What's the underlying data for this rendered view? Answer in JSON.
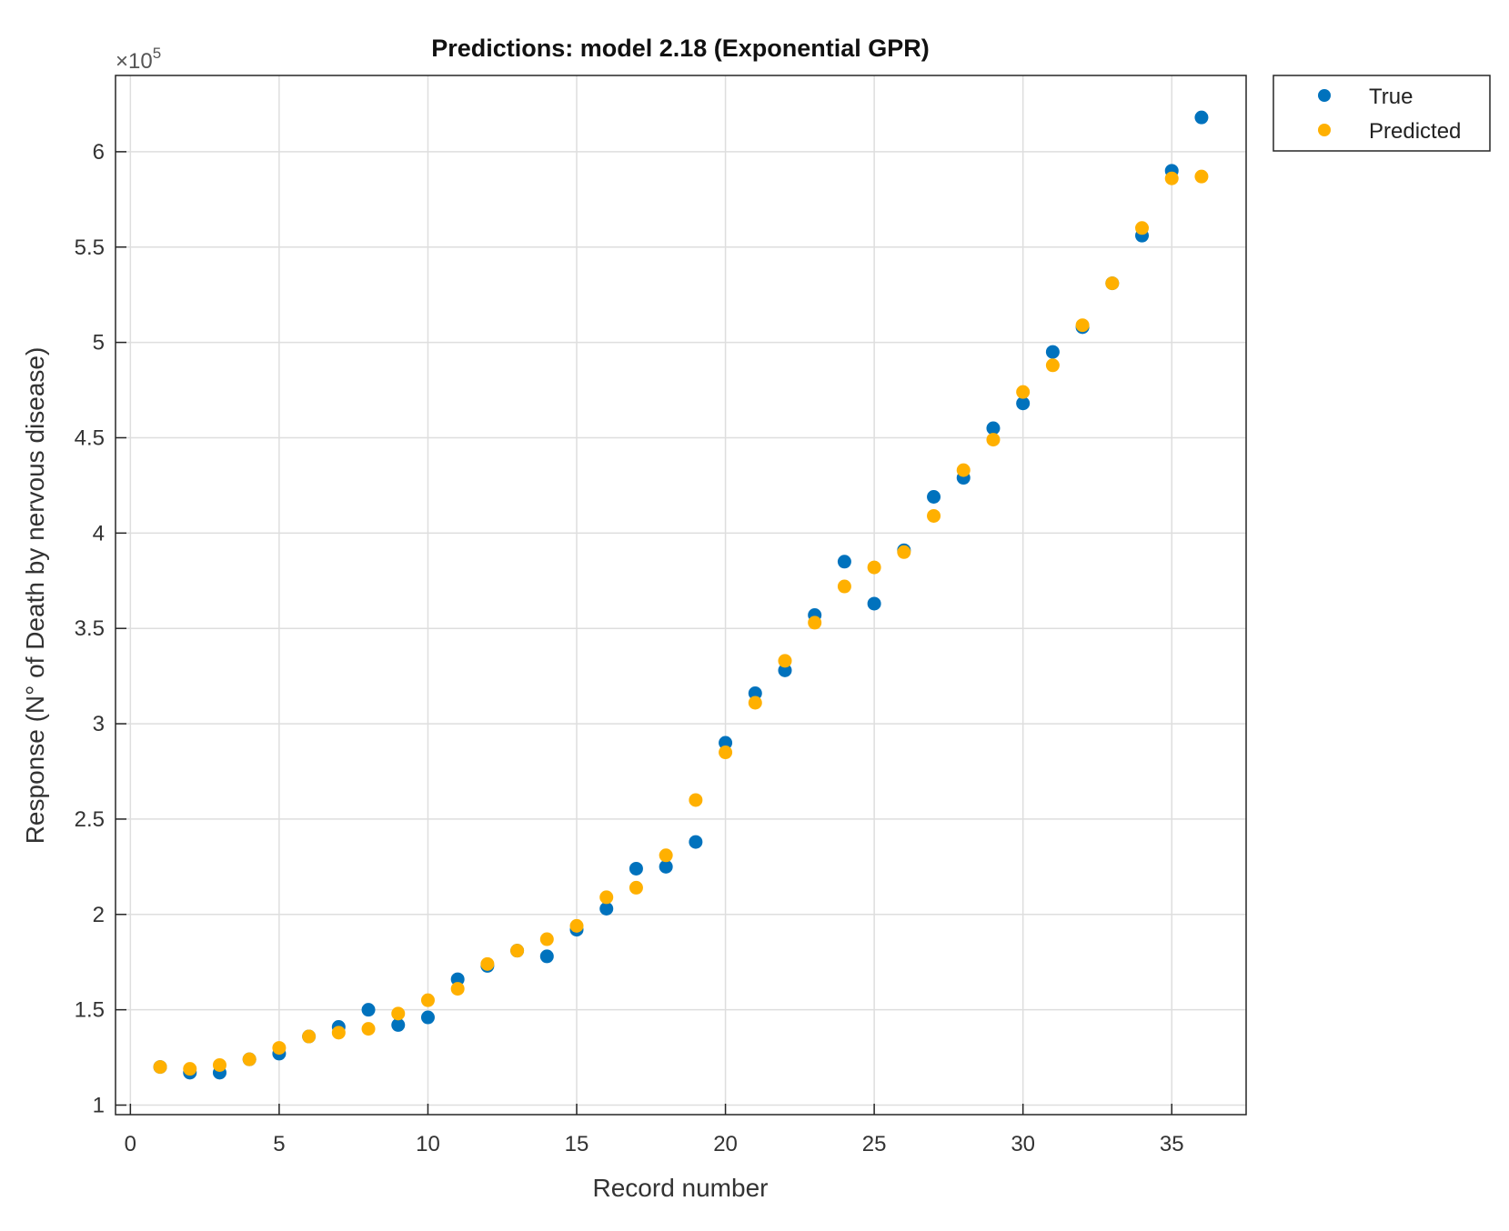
{
  "chart_data": {
    "type": "scatter",
    "title": "Predictions: model 2.18 (Exponential GPR)",
    "xlabel": "Record number",
    "ylabel": "Response (N° of Death by nervous disease)",
    "exponent_label_base": "×10",
    "exponent_label_power": "5",
    "xlim": [
      -0.5,
      37.5
    ],
    "ylim": [
      0.95,
      6.4
    ],
    "y_scale": 100000,
    "xticks": [
      0,
      5,
      10,
      15,
      20,
      25,
      30,
      35
    ],
    "xtick_labels": [
      "0",
      "5",
      "10",
      "15",
      "20",
      "25",
      "30",
      "35"
    ],
    "yticks": [
      1,
      1.5,
      2,
      2.5,
      3,
      3.5,
      4,
      4.5,
      5,
      5.5,
      6
    ],
    "ytick_labels": [
      "1",
      "1.5",
      "2",
      "2.5",
      "3",
      "3.5",
      "4",
      "4.5",
      "5",
      "5.5",
      "6"
    ],
    "grid": true,
    "legend_position": "outside-top-right",
    "x": [
      1,
      2,
      3,
      4,
      5,
      6,
      7,
      8,
      9,
      10,
      11,
      12,
      13,
      14,
      15,
      16,
      17,
      18,
      19,
      20,
      21,
      22,
      23,
      24,
      25,
      26,
      27,
      28,
      29,
      30,
      31,
      32,
      33,
      34,
      35,
      36
    ],
    "series": [
      {
        "name": "True",
        "color": "#0072BD",
        "values": [
          1.2,
          1.17,
          1.17,
          1.24,
          1.27,
          1.36,
          1.41,
          1.5,
          1.42,
          1.46,
          1.66,
          1.73,
          1.81,
          1.78,
          1.92,
          2.03,
          2.24,
          2.25,
          2.38,
          2.9,
          3.16,
          3.28,
          3.57,
          3.85,
          3.63,
          3.91,
          4.19,
          4.29,
          4.55,
          4.68,
          4.95,
          5.08,
          5.31,
          5.56,
          5.9,
          6.18
        ]
      },
      {
        "name": "Predicted",
        "color": "#FFB000",
        "values": [
          1.2,
          1.19,
          1.21,
          1.24,
          1.3,
          1.36,
          1.38,
          1.4,
          1.48,
          1.55,
          1.61,
          1.74,
          1.81,
          1.87,
          1.94,
          2.09,
          2.14,
          2.31,
          2.6,
          2.85,
          3.11,
          3.33,
          3.53,
          3.72,
          3.82,
          3.9,
          4.09,
          4.33,
          4.49,
          4.74,
          4.88,
          5.09,
          5.31,
          5.6,
          5.86,
          5.87
        ]
      }
    ]
  }
}
